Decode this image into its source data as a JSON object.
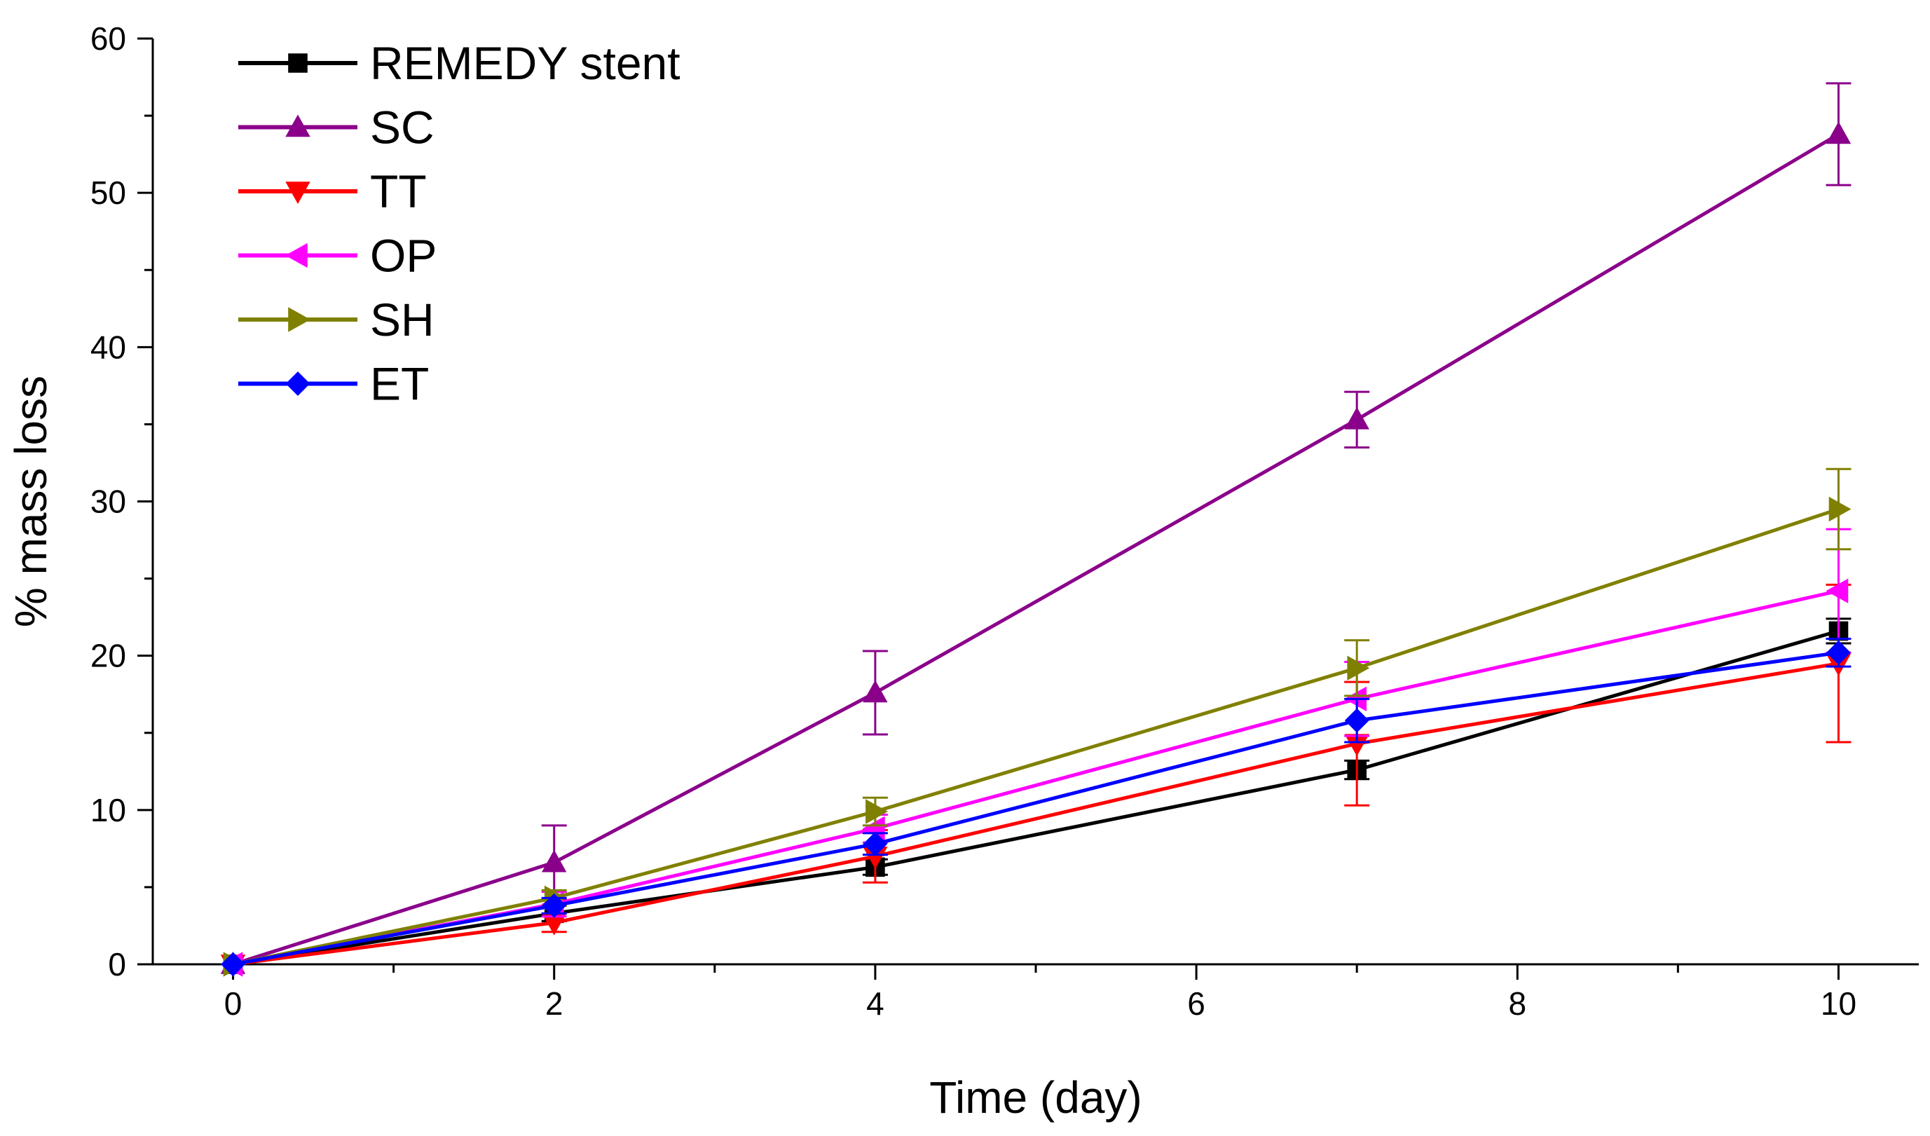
{
  "chart_data": {
    "type": "line",
    "title": "",
    "xlabel": "Time (day)",
    "ylabel": "% mass loss",
    "xlim": [
      -0.5,
      10.5
    ],
    "ylim": [
      0,
      60
    ],
    "xticks": [
      0,
      2,
      4,
      6,
      8,
      10
    ],
    "xtick_labels": [
      "0",
      "2",
      "4",
      "6",
      "8",
      "10"
    ],
    "yticks": [
      0,
      10,
      20,
      30,
      40,
      50,
      60
    ],
    "ytick_labels": [
      "0",
      "10",
      "20",
      "30",
      "40",
      "50",
      "60"
    ],
    "grid": false,
    "legend_position": "top-left",
    "x": [
      0,
      2,
      4,
      7,
      10
    ],
    "series": [
      {
        "name": "REMEDY stent",
        "color": "#000000",
        "marker": "square",
        "values": [
          0,
          3.3,
          6.3,
          12.6,
          21.6
        ],
        "errors": [
          0,
          0.5,
          0.5,
          0.6,
          0.8
        ]
      },
      {
        "name": "SC",
        "color": "#8B008B",
        "marker": "triangle-up",
        "values": [
          0,
          6.6,
          17.6,
          35.3,
          53.8
        ],
        "errors": [
          0,
          2.4,
          2.7,
          1.8,
          3.3
        ]
      },
      {
        "name": "TT",
        "color": "#FF0000",
        "marker": "triangle-down",
        "values": [
          0,
          2.7,
          7.0,
          14.3,
          19.5
        ],
        "errors": [
          0,
          0.6,
          1.7,
          4.0,
          5.1
        ]
      },
      {
        "name": "OP",
        "color": "#FF00FF",
        "marker": "triangle-left",
        "values": [
          0,
          3.9,
          8.8,
          17.2,
          24.2
        ],
        "errors": [
          0,
          0.8,
          0.9,
          2.4,
          4.0
        ]
      },
      {
        "name": "SH",
        "color": "#808000",
        "marker": "triangle-right",
        "values": [
          0,
          4.3,
          9.9,
          19.2,
          29.5
        ],
        "errors": [
          0,
          0.5,
          0.9,
          1.8,
          2.6
        ]
      },
      {
        "name": "ET",
        "color": "#0000FF",
        "marker": "diamond",
        "values": [
          0,
          3.8,
          7.8,
          15.8,
          20.2
        ],
        "errors": [
          0,
          0.5,
          0.7,
          1.4,
          0.9
        ]
      }
    ]
  }
}
